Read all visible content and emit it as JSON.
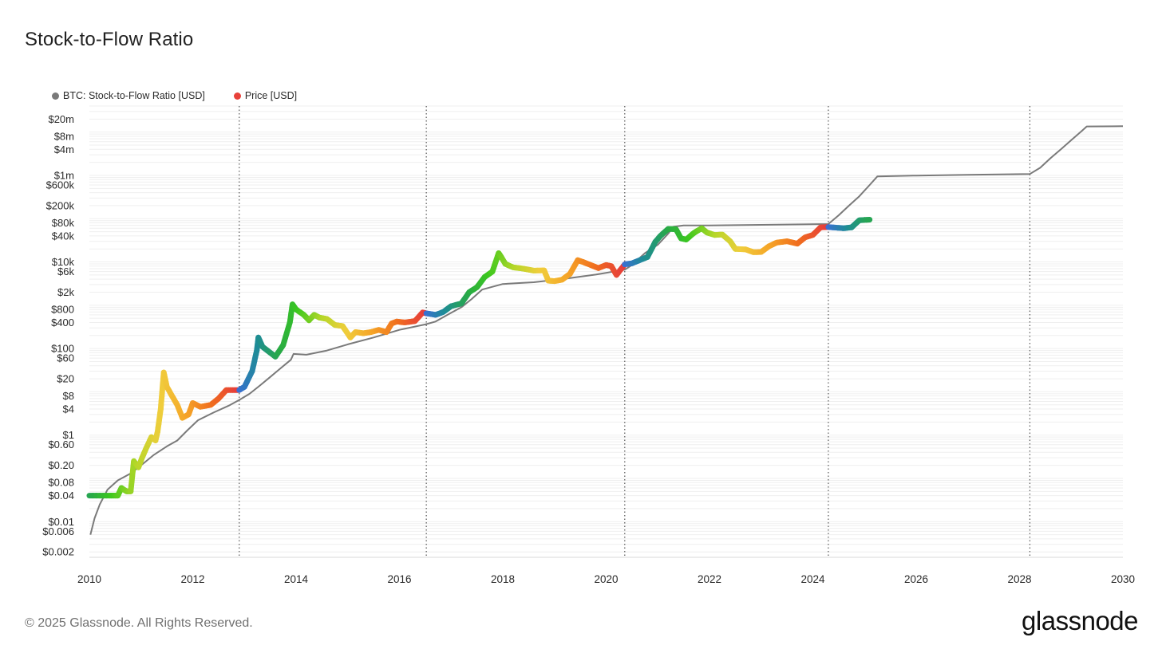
{
  "header": {
    "title": "Stock-to-Flow Ratio"
  },
  "footer": {
    "copyright": "© 2025 Glassnode. All Rights Reserved.",
    "brand": "glassnode"
  },
  "chart_data": {
    "type": "line",
    "title": "Stock-to-Flow Ratio",
    "yscale": "log",
    "ylim": [
      0.0015,
      40000000
    ],
    "xlim": [
      2010,
      2030
    ],
    "grid": true,
    "legend": {
      "position": "top-left",
      "entries": [
        {
          "label": "BTC: Stock-to-Flow Ratio [USD]",
          "color": "#7a7a7a"
        },
        {
          "label": "Price [USD]",
          "color": "#e8413a"
        }
      ]
    },
    "y_ticks": [
      {
        "value": 20000000,
        "label": "$20m"
      },
      {
        "value": 8000000,
        "label": "$8m"
      },
      {
        "value": 4000000,
        "label": "$4m"
      },
      {
        "value": 1000000,
        "label": "$1m"
      },
      {
        "value": 600000,
        "label": "$600k"
      },
      {
        "value": 200000,
        "label": "$200k"
      },
      {
        "value": 80000,
        "label": "$80k"
      },
      {
        "value": 40000,
        "label": "$40k"
      },
      {
        "value": 10000,
        "label": "$10k"
      },
      {
        "value": 6000,
        "label": "$6k"
      },
      {
        "value": 2000,
        "label": "$2k"
      },
      {
        "value": 800,
        "label": "$800"
      },
      {
        "value": 400,
        "label": "$400"
      },
      {
        "value": 100,
        "label": "$100"
      },
      {
        "value": 60,
        "label": "$60"
      },
      {
        "value": 20,
        "label": "$20"
      },
      {
        "value": 8,
        "label": "$8"
      },
      {
        "value": 4,
        "label": "$4"
      },
      {
        "value": 1,
        "label": "$1"
      },
      {
        "value": 0.6,
        "label": "$0.60"
      },
      {
        "value": 0.2,
        "label": "$0.20"
      },
      {
        "value": 0.08,
        "label": "$0.08"
      },
      {
        "value": 0.04,
        "label": "$0.04"
      },
      {
        "value": 0.01,
        "label": "$0.01"
      },
      {
        "value": 0.006,
        "label": "$0.006"
      },
      {
        "value": 0.002,
        "label": "$0.002"
      }
    ],
    "x_ticks": [
      {
        "value": 2010,
        "label": "2010"
      },
      {
        "value": 2012,
        "label": "2012"
      },
      {
        "value": 2014,
        "label": "2014"
      },
      {
        "value": 2016,
        "label": "2016"
      },
      {
        "value": 2018,
        "label": "2018"
      },
      {
        "value": 2020,
        "label": "2020"
      },
      {
        "value": 2022,
        "label": "2022"
      },
      {
        "value": 2024,
        "label": "2024"
      },
      {
        "value": 2026,
        "label": "2026"
      },
      {
        "value": 2028,
        "label": "2028"
      },
      {
        "value": 2030,
        "label": "2030"
      }
    ],
    "halvings": [
      2012.9,
      2016.52,
      2020.36,
      2024.3,
      2028.2
    ],
    "series": [
      {
        "name": "BTC: Stock-to-Flow Ratio [USD]",
        "color": "#7a7a7a",
        "points": [
          [
            2010.02,
            0.005
          ],
          [
            2010.1,
            0.012
          ],
          [
            2010.2,
            0.025
          ],
          [
            2010.35,
            0.055
          ],
          [
            2010.55,
            0.09
          ],
          [
            2010.8,
            0.13
          ],
          [
            2011.0,
            0.2
          ],
          [
            2011.25,
            0.35
          ],
          [
            2011.5,
            0.55
          ],
          [
            2011.7,
            0.75
          ],
          [
            2011.9,
            1.3
          ],
          [
            2012.1,
            2.2
          ],
          [
            2012.4,
            3.3
          ],
          [
            2012.7,
            4.8
          ],
          [
            2012.9,
            6.5
          ],
          [
            2013.1,
            9
          ],
          [
            2013.3,
            14
          ],
          [
            2013.5,
            22
          ],
          [
            2013.7,
            35
          ],
          [
            2013.9,
            55
          ],
          [
            2013.95,
            75
          ],
          [
            2014.2,
            72
          ],
          [
            2014.6,
            90
          ],
          [
            2015.0,
            125
          ],
          [
            2015.5,
            180
          ],
          [
            2016.0,
            270
          ],
          [
            2016.5,
            360
          ],
          [
            2016.7,
            420
          ],
          [
            2016.95,
            620
          ],
          [
            2017.2,
            900
          ],
          [
            2017.4,
            1400
          ],
          [
            2017.6,
            2300
          ],
          [
            2018.0,
            3100
          ],
          [
            2018.6,
            3400
          ],
          [
            2019.2,
            4100
          ],
          [
            2019.8,
            5100
          ],
          [
            2020.36,
            6600
          ],
          [
            2020.5,
            8500
          ],
          [
            2020.75,
            16000
          ],
          [
            2021.0,
            25000
          ],
          [
            2021.2,
            45000
          ],
          [
            2021.3,
            65000
          ],
          [
            2021.5,
            70000
          ],
          [
            2022.0,
            70000
          ],
          [
            2023.0,
            72000
          ],
          [
            2024.3,
            75000
          ],
          [
            2024.5,
            120000
          ],
          [
            2024.7,
            200000
          ],
          [
            2024.9,
            330000
          ],
          [
            2025.1,
            600000
          ],
          [
            2025.25,
            950000
          ],
          [
            2025.5,
            960000
          ],
          [
            2026.0,
            990000
          ],
          [
            2027.0,
            1030000
          ],
          [
            2028.2,
            1080000
          ],
          [
            2028.4,
            1500000
          ],
          [
            2028.6,
            2500000
          ],
          [
            2028.8,
            4000000
          ],
          [
            2029.0,
            6500000
          ],
          [
            2029.2,
            10500000
          ],
          [
            2029.3,
            13500000
          ],
          [
            2030.0,
            13700000
          ]
        ]
      },
      {
        "name": "Price [USD]",
        "color": "#e8413a",
        "colored_by": "halving-cycle position",
        "points": [
          [
            2010.0,
            0.04
          ],
          [
            2010.4,
            0.04
          ],
          [
            2010.55,
            0.04
          ],
          [
            2010.62,
            0.06
          ],
          [
            2010.72,
            0.05
          ],
          [
            2010.8,
            0.05
          ],
          [
            2010.86,
            0.25
          ],
          [
            2010.95,
            0.18
          ],
          [
            2011.02,
            0.3
          ],
          [
            2011.1,
            0.5
          ],
          [
            2011.2,
            0.9
          ],
          [
            2011.28,
            0.75
          ],
          [
            2011.32,
            1.2
          ],
          [
            2011.38,
            4
          ],
          [
            2011.42,
            15
          ],
          [
            2011.44,
            28
          ],
          [
            2011.5,
            13
          ],
          [
            2011.6,
            8
          ],
          [
            2011.7,
            5
          ],
          [
            2011.8,
            2.5
          ],
          [
            2011.92,
            3
          ],
          [
            2012.0,
            5.5
          ],
          [
            2012.15,
            4.5
          ],
          [
            2012.35,
            5
          ],
          [
            2012.5,
            7
          ],
          [
            2012.65,
            11
          ],
          [
            2012.9,
            11
          ],
          [
            2013.0,
            13
          ],
          [
            2013.15,
            30
          ],
          [
            2013.24,
            90
          ],
          [
            2013.27,
            180
          ],
          [
            2013.35,
            110
          ],
          [
            2013.5,
            80
          ],
          [
            2013.6,
            65
          ],
          [
            2013.75,
            120
          ],
          [
            2013.88,
            400
          ],
          [
            2013.93,
            1050
          ],
          [
            2014.0,
            800
          ],
          [
            2014.15,
            600
          ],
          [
            2014.25,
            450
          ],
          [
            2014.35,
            600
          ],
          [
            2014.45,
            520
          ],
          [
            2014.6,
            480
          ],
          [
            2014.75,
            350
          ],
          [
            2014.9,
            330
          ],
          [
            2015.05,
            180
          ],
          [
            2015.15,
            240
          ],
          [
            2015.3,
            225
          ],
          [
            2015.45,
            240
          ],
          [
            2015.6,
            270
          ],
          [
            2015.75,
            240
          ],
          [
            2015.85,
            380
          ],
          [
            2015.95,
            420
          ],
          [
            2016.1,
            400
          ],
          [
            2016.3,
            430
          ],
          [
            2016.45,
            680
          ],
          [
            2016.52,
            650
          ],
          [
            2016.7,
            600
          ],
          [
            2016.85,
            700
          ],
          [
            2017.0,
            950
          ],
          [
            2017.2,
            1100
          ],
          [
            2017.35,
            2000
          ],
          [
            2017.5,
            2600
          ],
          [
            2017.65,
            4500
          ],
          [
            2017.8,
            6000
          ],
          [
            2017.92,
            16000
          ],
          [
            2017.97,
            13000
          ],
          [
            2018.05,
            9000
          ],
          [
            2018.2,
            7500
          ],
          [
            2018.4,
            7000
          ],
          [
            2018.6,
            6300
          ],
          [
            2018.8,
            6400
          ],
          [
            2018.88,
            3700
          ],
          [
            2019.0,
            3600
          ],
          [
            2019.15,
            3900
          ],
          [
            2019.3,
            5300
          ],
          [
            2019.45,
            11000
          ],
          [
            2019.55,
            10000
          ],
          [
            2019.7,
            8500
          ],
          [
            2019.85,
            7200
          ],
          [
            2020.0,
            8500
          ],
          [
            2020.1,
            8000
          ],
          [
            2020.2,
            5000
          ],
          [
            2020.36,
            8800
          ],
          [
            2020.5,
            9300
          ],
          [
            2020.65,
            11000
          ],
          [
            2020.8,
            13000
          ],
          [
            2020.95,
            29000
          ],
          [
            2021.05,
            40000
          ],
          [
            2021.2,
            58000
          ],
          [
            2021.35,
            57000
          ],
          [
            2021.45,
            35000
          ],
          [
            2021.55,
            33000
          ],
          [
            2021.7,
            47000
          ],
          [
            2021.85,
            60000
          ],
          [
            2021.95,
            48000
          ],
          [
            2022.1,
            42000
          ],
          [
            2022.25,
            43000
          ],
          [
            2022.4,
            30000
          ],
          [
            2022.5,
            20000
          ],
          [
            2022.7,
            19500
          ],
          [
            2022.85,
            16800
          ],
          [
            2023.0,
            17000
          ],
          [
            2023.15,
            23000
          ],
          [
            2023.3,
            28000
          ],
          [
            2023.5,
            30000
          ],
          [
            2023.7,
            26500
          ],
          [
            2023.85,
            37000
          ],
          [
            2024.0,
            42000
          ],
          [
            2024.15,
            63000
          ],
          [
            2024.3,
            64000
          ],
          [
            2024.45,
            62000
          ],
          [
            2024.6,
            60000
          ],
          [
            2024.75,
            63000
          ],
          [
            2024.9,
            92000
          ],
          [
            2025.1,
            95000
          ]
        ]
      }
    ]
  }
}
